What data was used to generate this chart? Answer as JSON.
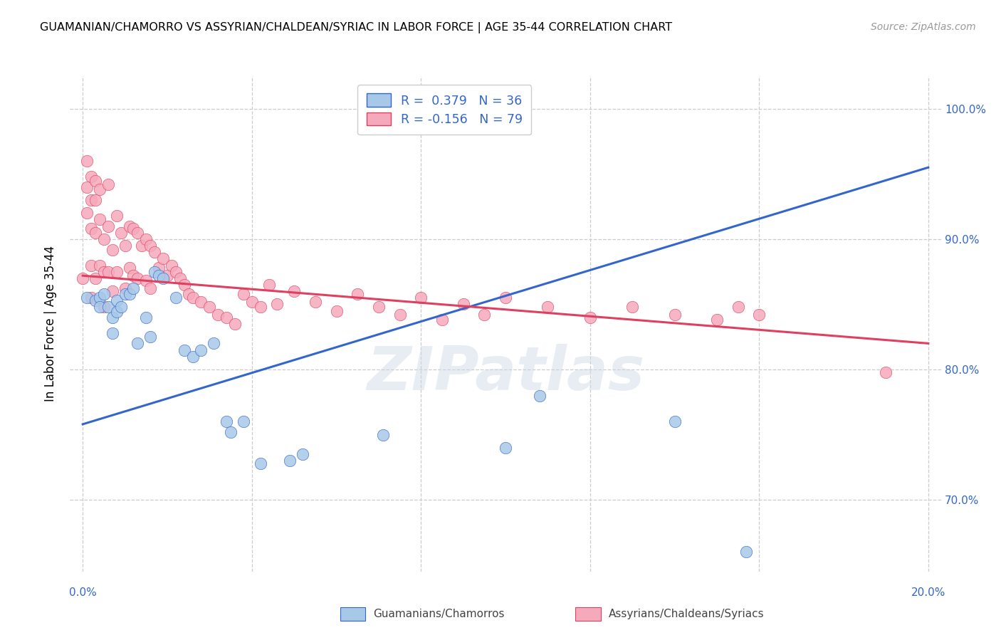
{
  "title": "GUAMANIAN/CHAMORRO VS ASSYRIAN/CHALDEAN/SYRIAC IN LABOR FORCE | AGE 35-44 CORRELATION CHART",
  "source": "Source: ZipAtlas.com",
  "ylabel": "In Labor Force | Age 35-44",
  "legend_blue_r": "R =  0.379",
  "legend_blue_n": "N = 36",
  "legend_pink_r": "R = -0.156",
  "legend_pink_n": "N = 79",
  "blue_color": "#a8c8e8",
  "pink_color": "#f5aabc",
  "blue_line_color": "#3366cc",
  "pink_line_color": "#e04060",
  "legend_label_blue": "Guamanians/Chamorros",
  "legend_label_pink": "Assyrians/Chaldeans/Syriacs",
  "blue_scatter_x": [
    0.001,
    0.003,
    0.004,
    0.004,
    0.005,
    0.006,
    0.007,
    0.007,
    0.008,
    0.008,
    0.009,
    0.01,
    0.011,
    0.012,
    0.013,
    0.015,
    0.016,
    0.017,
    0.018,
    0.019,
    0.022,
    0.024,
    0.026,
    0.028,
    0.031,
    0.034,
    0.035,
    0.038,
    0.042,
    0.049,
    0.052,
    0.071,
    0.1,
    0.108,
    0.14,
    0.157
  ],
  "blue_scatter_y": [
    0.855,
    0.853,
    0.855,
    0.848,
    0.858,
    0.848,
    0.84,
    0.828,
    0.853,
    0.844,
    0.848,
    0.858,
    0.858,
    0.862,
    0.82,
    0.84,
    0.825,
    0.875,
    0.872,
    0.87,
    0.855,
    0.815,
    0.81,
    0.815,
    0.82,
    0.76,
    0.752,
    0.76,
    0.728,
    0.73,
    0.735,
    0.75,
    0.74,
    0.78,
    0.76,
    0.66
  ],
  "pink_scatter_x": [
    0.0,
    0.001,
    0.001,
    0.001,
    0.002,
    0.002,
    0.002,
    0.002,
    0.002,
    0.003,
    0.003,
    0.003,
    0.003,
    0.004,
    0.004,
    0.004,
    0.005,
    0.005,
    0.005,
    0.006,
    0.006,
    0.006,
    0.007,
    0.007,
    0.008,
    0.008,
    0.009,
    0.01,
    0.01,
    0.011,
    0.011,
    0.012,
    0.012,
    0.013,
    0.013,
    0.014,
    0.015,
    0.015,
    0.016,
    0.016,
    0.017,
    0.018,
    0.019,
    0.02,
    0.021,
    0.022,
    0.023,
    0.024,
    0.025,
    0.026,
    0.028,
    0.03,
    0.032,
    0.034,
    0.036,
    0.038,
    0.04,
    0.042,
    0.044,
    0.046,
    0.05,
    0.055,
    0.06,
    0.065,
    0.07,
    0.075,
    0.08,
    0.085,
    0.09,
    0.095,
    0.1,
    0.11,
    0.12,
    0.13,
    0.14,
    0.15,
    0.155,
    0.16,
    0.19
  ],
  "pink_scatter_y": [
    0.87,
    0.96,
    0.94,
    0.92,
    0.948,
    0.93,
    0.908,
    0.88,
    0.855,
    0.945,
    0.93,
    0.905,
    0.87,
    0.938,
    0.915,
    0.88,
    0.9,
    0.875,
    0.848,
    0.942,
    0.91,
    0.875,
    0.892,
    0.86,
    0.918,
    0.875,
    0.905,
    0.895,
    0.862,
    0.91,
    0.878,
    0.908,
    0.872,
    0.905,
    0.87,
    0.895,
    0.9,
    0.868,
    0.895,
    0.862,
    0.89,
    0.878,
    0.885,
    0.872,
    0.88,
    0.875,
    0.87,
    0.865,
    0.858,
    0.855,
    0.852,
    0.848,
    0.842,
    0.84,
    0.835,
    0.858,
    0.852,
    0.848,
    0.865,
    0.85,
    0.86,
    0.852,
    0.845,
    0.858,
    0.848,
    0.842,
    0.855,
    0.838,
    0.85,
    0.842,
    0.855,
    0.848,
    0.84,
    0.848,
    0.842,
    0.838,
    0.848,
    0.842,
    0.798
  ],
  "blue_trend_x": [
    0.0,
    0.2
  ],
  "blue_trend_y": [
    0.758,
    0.955
  ],
  "pink_trend_x": [
    0.0,
    0.2
  ],
  "pink_trend_y": [
    0.872,
    0.82
  ],
  "xlim": [
    -0.003,
    0.203
  ],
  "ylim": [
    0.645,
    1.025
  ],
  "yticks": [
    0.7,
    0.8,
    0.9,
    1.0
  ],
  "xticks": [
    0.0,
    0.04,
    0.08,
    0.12,
    0.16,
    0.2
  ],
  "watermark": "ZIPatlas",
  "bg_color": "#ffffff"
}
